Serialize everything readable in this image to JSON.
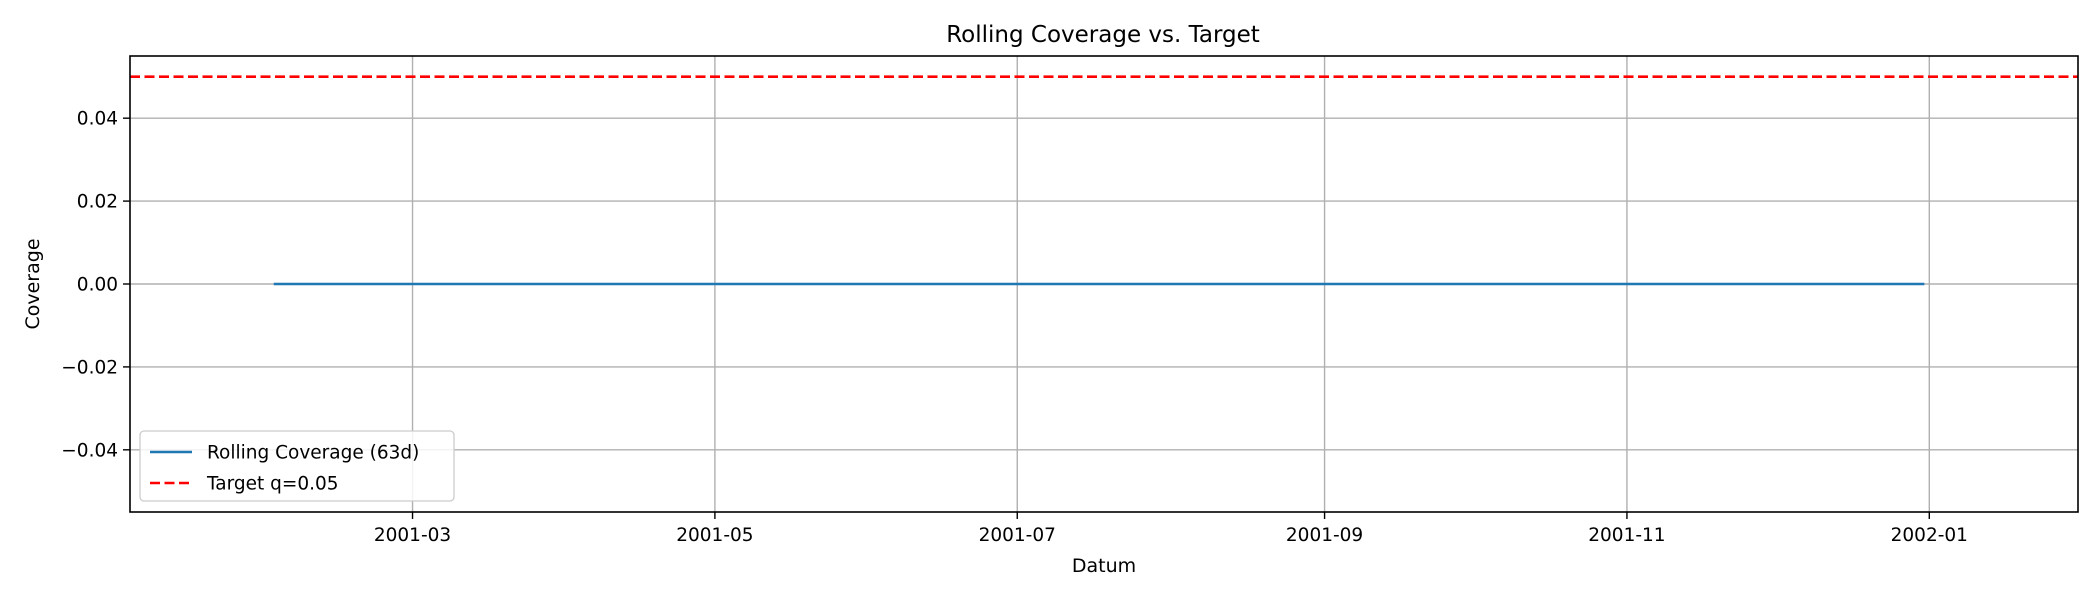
{
  "chart_data": {
    "type": "line",
    "title": "Rolling Coverage vs. Target",
    "xlabel": "Datum",
    "ylabel": "Coverage",
    "xlim": [
      "2001-01-03",
      "2002-01-31"
    ],
    "ylim": [
      -0.055,
      0.055
    ],
    "x_ticks": [
      {
        "date": "2001-03-01",
        "label": "2001-03"
      },
      {
        "date": "2001-05-01",
        "label": "2001-05"
      },
      {
        "date": "2001-07-01",
        "label": "2001-07"
      },
      {
        "date": "2001-09-01",
        "label": "2001-09"
      },
      {
        "date": "2001-11-01",
        "label": "2001-11"
      },
      {
        "date": "2002-01-01",
        "label": "2002-01"
      }
    ],
    "y_ticks": [
      {
        "value": -0.04,
        "label": "−0.04"
      },
      {
        "value": -0.02,
        "label": "−0.02"
      },
      {
        "value": 0.0,
        "label": "0.00"
      },
      {
        "value": 0.02,
        "label": "0.02"
      },
      {
        "value": 0.04,
        "label": "0.04"
      }
    ],
    "grid": true,
    "legend_position": "lower-left",
    "series": [
      {
        "name": "Rolling Coverage (63d)",
        "color": "#1f77b4",
        "style": "solid",
        "x": [
          "2001-02-01",
          "2001-04-01",
          "2001-06-01",
          "2001-08-01",
          "2001-10-01",
          "2001-12-31"
        ],
        "y": [
          0.0,
          0.0,
          0.0,
          0.0,
          0.0,
          0.0
        ]
      }
    ],
    "reference_lines": [
      {
        "name": "Target q=0.05",
        "orientation": "horizontal",
        "value": 0.05,
        "color": "#ff0000",
        "style": "dashed"
      }
    ]
  }
}
